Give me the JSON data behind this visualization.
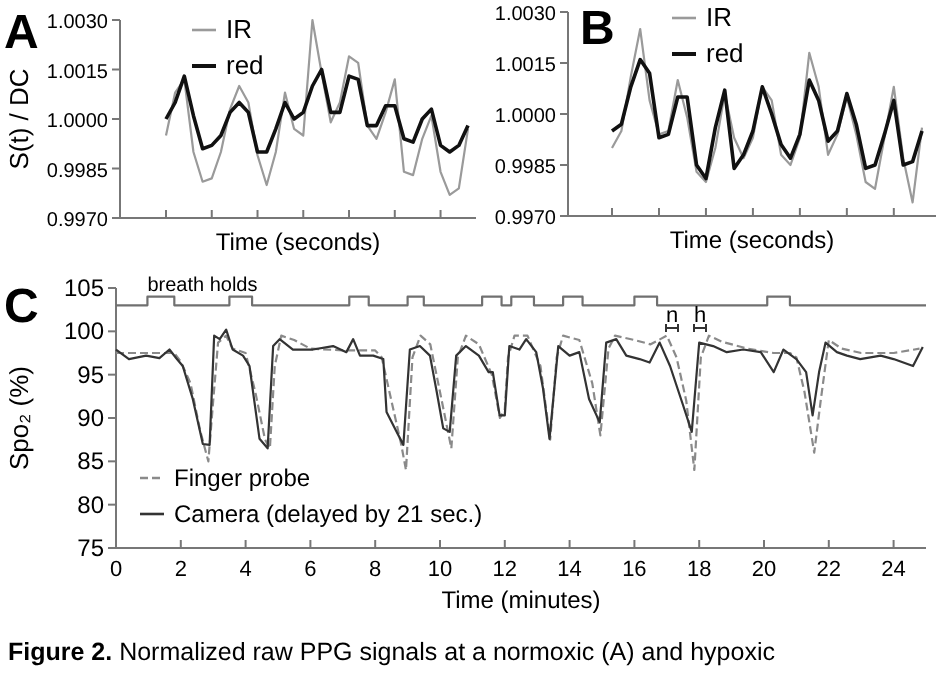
{
  "chart_data": [
    {
      "type": "line",
      "title": "A",
      "xlabel": "Time (seconds)",
      "ylabel": "S(t) / DC",
      "categories": [
        null,
        null,
        null,
        null,
        null,
        null,
        null,
        null,
        null,
        null,
        null,
        null,
        null,
        null,
        null,
        null,
        null,
        null,
        null,
        null,
        null,
        null,
        null,
        null,
        null,
        null,
        null,
        null,
        null,
        null,
        null,
        null,
        null,
        null
      ],
      "ylim": [
        0.997,
        1.003
      ],
      "yticks": [
        {
          "value": 0.997,
          "label": "0.9970"
        },
        {
          "value": 0.9985,
          "label": "0.9985"
        },
        {
          "value": 1,
          "label": "1.0000"
        },
        {
          "value": 1.0015,
          "label": "1.0015"
        },
        {
          "value": 1.003,
          "label": "1.0030"
        }
      ],
      "legend": "top",
      "grid": false,
      "series": [
        {
          "name": "IR",
          "color": "#9a9a9a",
          "values": [
            0.9995,
            1.0008,
            1.0012,
            0.999,
            0.9981,
            0.9982,
            0.999,
            1.0003,
            1.001,
            1.0005,
            0.9989,
            0.998,
            0.999,
            1.0008,
            0.9997,
            0.9995,
            1.003,
            1.0014,
            0.9999,
            1.0005,
            1.0019,
            1.0017,
            0.9998,
            0.9994,
            1.0002,
            1.0012,
            0.9984,
            0.9983,
            0.9994,
            1.0001,
            0.9984,
            0.9977,
            0.9979,
            0.9997
          ]
        },
        {
          "name": "red",
          "color": "#111111",
          "values": [
            1.0,
            1.0005,
            1.0013,
            1.0001,
            0.9991,
            0.9992,
            0.9995,
            1.0002,
            1.0005,
            1.0002,
            0.999,
            0.999,
            0.9997,
            1.0005,
            1.0,
            1.0002,
            1.001,
            1.0015,
            1.0002,
            1.0002,
            1.0013,
            1.0012,
            0.9998,
            0.9998,
            1.0004,
            1.0004,
            0.9994,
            0.9993,
            1.0,
            1.0003,
            0.9992,
            0.999,
            0.9992,
            0.9998
          ]
        }
      ]
    },
    {
      "type": "line",
      "title": "B",
      "xlabel": "Time (seconds)",
      "categories": [
        null,
        null,
        null,
        null,
        null,
        null,
        null,
        null,
        null,
        null,
        null,
        null,
        null,
        null,
        null,
        null,
        null,
        null,
        null,
        null,
        null,
        null,
        null,
        null,
        null,
        null,
        null,
        null,
        null,
        null,
        null,
        null,
        null,
        null
      ],
      "ylim": [
        0.997,
        1.003
      ],
      "yticks": [
        {
          "value": 0.997,
          "label": "0.9970"
        },
        {
          "value": 0.9985,
          "label": "0.9985"
        },
        {
          "value": 1,
          "label": "1.0000"
        },
        {
          "value": 1.0015,
          "label": "1.0015"
        },
        {
          "value": 1.003,
          "label": "1.0030"
        }
      ],
      "legend": "top",
      "grid": false,
      "series": [
        {
          "name": "IR",
          "color": "#9a9a9a",
          "values": [
            0.999,
            0.9995,
            1.0011,
            1.0025,
            1.0004,
            0.9994,
            0.9995,
            1.001,
            0.9999,
            0.9983,
            0.998,
            0.999,
            1.0006,
            0.9993,
            0.9987,
            0.9993,
            1.0008,
            1.0004,
            0.9988,
            0.9985,
            0.9993,
            1.0018,
            1.0008,
            0.9988,
            0.9994,
            1.0005,
            0.9994,
            0.998,
            0.9978,
            0.9993,
            1.0008,
            0.9987,
            0.9974,
            0.9996
          ]
        },
        {
          "name": "red",
          "color": "#111111",
          "values": [
            0.9995,
            0.9997,
            1.0008,
            1.0016,
            1.0012,
            0.9993,
            0.9994,
            1.0005,
            1.0005,
            0.9985,
            0.9981,
            0.9996,
            1.0007,
            0.9984,
            0.9988,
            0.9995,
            1.0008,
            1.0,
            0.9991,
            0.9987,
            0.9994,
            1.001,
            1.0004,
            0.9992,
            0.9995,
            1.0006,
            0.9997,
            0.9984,
            0.9985,
            0.9994,
            1.0004,
            0.9985,
            0.9986,
            0.9995
          ]
        }
      ]
    },
    {
      "type": "line",
      "title": "C",
      "xlabel": "Time (minutes)",
      "ylabel": "Spo₂ (%)",
      "xlim": [
        0,
        25
      ],
      "xticks": [
        0,
        2,
        4,
        6,
        8,
        10,
        12,
        14,
        16,
        18,
        20,
        22,
        24
      ],
      "ylim": [
        75,
        105
      ],
      "yticks": [
        75,
        80,
        85,
        90,
        95,
        100,
        105
      ],
      "legend": "bottom left",
      "grid": false,
      "annotations": [
        "Figure 2. Normalized raw PPG signals at a normoxic (A) and hypoxic",
        "n",
        "h"
      ],
      "series": [
        {
          "name": "breath holds",
          "type": "step",
          "color": "#707070",
          "x": [
            0,
            0.97,
            1.8,
            3.5,
            4.2,
            7.2,
            7.8,
            9.0,
            9.5,
            11.3,
            11.9,
            12.2,
            12.9,
            13.8,
            14.4,
            16.0,
            16.7,
            20.1,
            20.8,
            25
          ],
          "values": [
            103,
            104,
            103,
            104,
            103,
            104,
            103,
            104,
            103,
            104,
            103,
            104,
            103,
            104,
            103,
            104,
            103,
            104,
            103,
            103
          ]
        },
        {
          "name": "Finger probe",
          "color": "#8a8a8a",
          "line_style": "dashed",
          "x": [
            0,
            1,
            1.8,
            2.0,
            2.3,
            2.6,
            2.85,
            3.0,
            3.15,
            3.4,
            3.6,
            4.0,
            4.3,
            4.6,
            4.75,
            4.9,
            5.1,
            5.5,
            6,
            7,
            8,
            8.2,
            8.5,
            8.8,
            8.95,
            9.15,
            9.4,
            9.7,
            10.0,
            10.35,
            10.55,
            10.8,
            11.2,
            11.6,
            11.85,
            12.0,
            12.1,
            12.3,
            12.7,
            13.1,
            13.4,
            13.6,
            13.8,
            14.3,
            14.7,
            14.95,
            15.2,
            15.4,
            16,
            16.5,
            17.0,
            17.3,
            17.6,
            17.85,
            18.05,
            18.3,
            18.7,
            19.5,
            20.3,
            20.8,
            21.0,
            21.25,
            21.55,
            21.75,
            22.0,
            22.4,
            23,
            24,
            24.8
          ],
          "values": [
            97.5,
            97.5,
            97.5,
            96.5,
            94,
            88.5,
            85,
            92,
            98.7,
            99.5,
            98,
            97.5,
            93,
            87.5,
            86.5,
            96,
            99.5,
            99,
            98,
            97.8,
            97.8,
            97,
            92,
            87,
            84,
            97,
            99.5,
            98.5,
            93,
            86.5,
            97,
            99.5,
            98.5,
            95,
            90,
            91,
            97,
            99.5,
            99.5,
            96,
            87.5,
            97,
            99.5,
            99,
            94,
            88,
            98,
            99.5,
            99,
            98.5,
            99.5,
            97,
            92,
            84,
            97,
            99.5,
            98.8,
            98,
            97.5,
            97.5,
            97,
            93,
            86,
            92,
            99,
            98,
            97.5,
            97.5,
            98
          ]
        },
        {
          "name": "Camera (delayed by 21 sec.)",
          "color": "#333333",
          "x": [
            0,
            0.4,
            0.93,
            1.34,
            1.65,
            1.86,
            2.06,
            2.37,
            2.68,
            2.89,
            3.03,
            3.2,
            3.4,
            3.6,
            3.92,
            4.12,
            4.43,
            4.68,
            4.85,
            5.05,
            5.46,
            6.08,
            6.7,
            7.11,
            7.32,
            7.53,
            7.94,
            8.25,
            8.35,
            8.66,
            8.87,
            9.07,
            9.38,
            9.69,
            9.9,
            10.1,
            10.3,
            10.5,
            10.8,
            11.2,
            11.5,
            11.63,
            11.84,
            12.0,
            12.14,
            12.45,
            12.66,
            12.97,
            13.18,
            13.38,
            13.65,
            14.0,
            14.3,
            14.6,
            14.93,
            15.13,
            15.44,
            15.75,
            16.16,
            16.47,
            16.78,
            17.1,
            17.5,
            17.77,
            18.0,
            18.43,
            18.85,
            19.36,
            19.9,
            20.3,
            20.6,
            21.0,
            21.3,
            21.5,
            21.7,
            21.9,
            22.25,
            22.56,
            22.97,
            23.6,
            24.0,
            24.6,
            24.9
          ],
          "values": [
            97.9,
            96.8,
            97.2,
            96.9,
            97.9,
            96.9,
            96,
            92.2,
            87,
            86.9,
            99.5,
            99.1,
            100.2,
            97.9,
            97.2,
            96,
            87.6,
            86.5,
            98.3,
            99.1,
            97.9,
            97.9,
            98.3,
            97.6,
            99.1,
            97.2,
            97.2,
            96.8,
            90.7,
            88.4,
            86.9,
            97.9,
            98.3,
            97.2,
            93,
            88.8,
            88.4,
            97.2,
            98.3,
            97.2,
            95.3,
            95.3,
            90.3,
            90.3,
            98.3,
            97.9,
            99.1,
            97.6,
            93.4,
            87.6,
            98.3,
            97.2,
            97.6,
            92.2,
            89.5,
            98.7,
            99.1,
            97.2,
            96.8,
            96.4,
            98.7,
            96,
            91.5,
            88.4,
            98.7,
            98.3,
            97.6,
            97.9,
            97.6,
            95.3,
            97.9,
            96.8,
            95.3,
            90.3,
            95.3,
            98.7,
            97.6,
            97.2,
            96.8,
            97.2,
            96.8,
            96,
            98.2
          ]
        }
      ]
    }
  ]
}
